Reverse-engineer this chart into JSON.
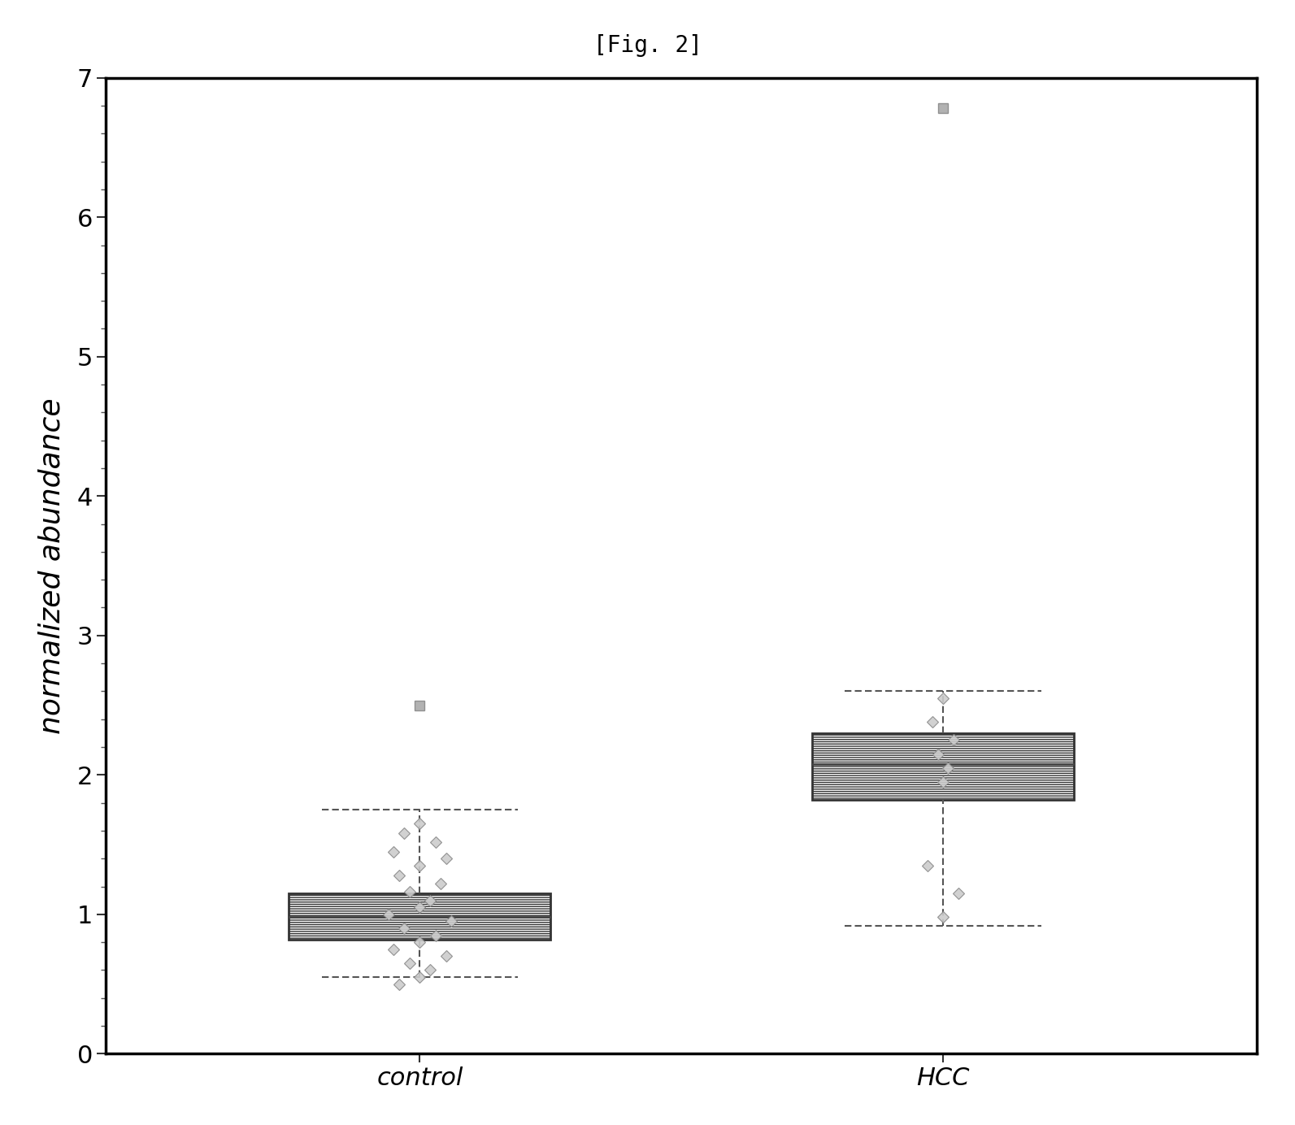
{
  "title": "[Fig. 2]",
  "ylabel": "normalized abundance",
  "xlabel": "",
  "categories": [
    "control",
    "HCC"
  ],
  "ylim": [
    0,
    7
  ],
  "yticks": [
    0,
    1,
    2,
    3,
    4,
    5,
    6,
    7
  ],
  "control": {
    "q1": 0.82,
    "median": 0.98,
    "q3": 1.15,
    "whisker_low": 0.55,
    "whisker_high": 1.75,
    "outliers": [
      2.5
    ],
    "points_x": [
      0.0,
      -0.03,
      0.03,
      -0.05,
      0.05,
      0.0,
      -0.04,
      0.04,
      -0.02,
      0.02,
      0.0,
      -0.06,
      0.06,
      -0.03,
      0.03,
      0.0,
      -0.05,
      0.05,
      -0.02,
      0.02,
      0.0,
      -0.04
    ],
    "points_y": [
      1.65,
      1.58,
      1.52,
      1.45,
      1.4,
      1.35,
      1.28,
      1.22,
      1.16,
      1.1,
      1.05,
      1.0,
      0.95,
      0.9,
      0.85,
      0.8,
      0.75,
      0.7,
      0.65,
      0.6,
      0.55,
      0.5
    ]
  },
  "hcc": {
    "q1": 1.82,
    "median": 2.08,
    "q3": 2.3,
    "whisker_low": 0.92,
    "whisker_high": 2.6,
    "outliers": [
      6.78
    ],
    "points_x": [
      0.0,
      -0.02,
      0.02,
      -0.01,
      0.01,
      0.0,
      -0.03,
      0.03,
      0.0
    ],
    "points_y": [
      2.55,
      2.38,
      2.25,
      2.15,
      2.05,
      1.95,
      1.35,
      1.15,
      0.98
    ]
  },
  "box_hatch": "----",
  "box_edge_color": "#333333",
  "median_color": "#444444",
  "whisker_color": "#555555",
  "point_face_color": "#cccccc",
  "point_edge_color": "#888888",
  "outlier_face_color": "#aaaaaa",
  "outlier_edge_color": "#888888",
  "background_color": "#ffffff",
  "title_fontsize": 20,
  "label_fontsize": 26,
  "tick_fontsize": 22,
  "box_width": 0.5
}
